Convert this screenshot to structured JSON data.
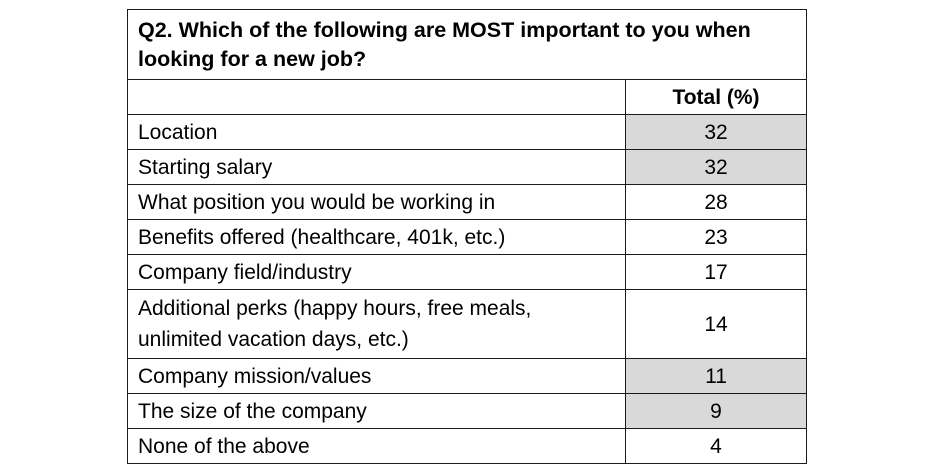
{
  "chart_data": {
    "type": "table",
    "title": "Q2. Which of the following are MOST important to you when looking for a new job?",
    "column_header": "Total (%)",
    "rows": [
      {
        "label": "Location",
        "value": "32",
        "highlight": true
      },
      {
        "label": "Starting salary",
        "value": "32",
        "highlight": true
      },
      {
        "label": "What position you would be working in",
        "value": "28",
        "highlight": false
      },
      {
        "label": "Benefits offered (healthcare, 401k, etc.)",
        "value": "23",
        "highlight": false
      },
      {
        "label": "Company field/industry",
        "value": "17",
        "highlight": false
      },
      {
        "label": "Additional perks (happy hours, free meals, unlimited vacation days, etc.)",
        "value": "14",
        "highlight": false
      },
      {
        "label": "Company mission/values",
        "value": "11",
        "highlight": true
      },
      {
        "label": "The size of the company",
        "value": "9",
        "highlight": true
      },
      {
        "label": "None of the above",
        "value": "4",
        "highlight": false
      }
    ],
    "highlight_color": "#d9d9d9"
  }
}
